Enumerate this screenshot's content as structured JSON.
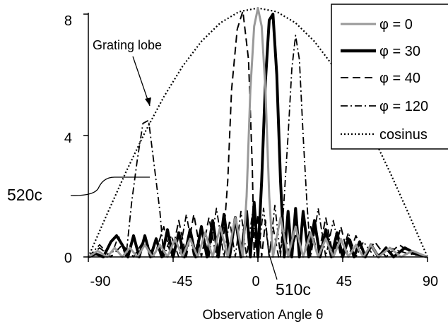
{
  "chart_data": {
    "type": "line",
    "title": "",
    "xlabel": "Observation Angle θ",
    "ylabel": "",
    "xlim": [
      -90,
      90
    ],
    "ylim": [
      0,
      8
    ],
    "x_ticks": [
      "-90",
      "-45",
      "0",
      "45",
      "90"
    ],
    "y_ticks": [
      "0",
      "4",
      "8"
    ],
    "grid": false,
    "legend_position": "top-right",
    "series": [
      {
        "name": "φ = 0",
        "style": "solid-gray",
        "color": "#999999",
        "points": [
          [
            -90,
            0
          ],
          [
            -85,
            0.2
          ],
          [
            -80,
            0
          ],
          [
            -76,
            0.3
          ],
          [
            -72,
            0
          ],
          [
            -68,
            0.3
          ],
          [
            -64,
            0
          ],
          [
            -60,
            0.4
          ],
          [
            -56,
            0
          ],
          [
            -52,
            0.4
          ],
          [
            -48,
            0
          ],
          [
            -44,
            0.6
          ],
          [
            -40,
            0
          ],
          [
            -36,
            0.6
          ],
          [
            -32,
            0
          ],
          [
            -28,
            0.8
          ],
          [
            -24,
            0
          ],
          [
            -20,
            1.0
          ],
          [
            -16,
            0
          ],
          [
            -12,
            1.3
          ],
          [
            -8,
            0
          ],
          [
            -6,
            2.0
          ],
          [
            -4,
            5.5
          ],
          [
            -2,
            7.6
          ],
          [
            0,
            8.2
          ],
          [
            2,
            7.6
          ],
          [
            4,
            5.5
          ],
          [
            6,
            2.0
          ],
          [
            8,
            0
          ],
          [
            12,
            1.3
          ],
          [
            16,
            0
          ],
          [
            20,
            1.0
          ],
          [
            24,
            0
          ],
          [
            28,
            0.8
          ],
          [
            32,
            0
          ],
          [
            36,
            0.6
          ],
          [
            40,
            0
          ],
          [
            44,
            0.6
          ],
          [
            48,
            0
          ],
          [
            52,
            0.4
          ],
          [
            56,
            0
          ],
          [
            60,
            0.4
          ],
          [
            64,
            0
          ],
          [
            70,
            0.3
          ],
          [
            76,
            0
          ],
          [
            82,
            0.2
          ],
          [
            90,
            0
          ]
        ]
      },
      {
        "name": "φ = 30",
        "style": "solid-thick",
        "color": "#000000",
        "points": [
          [
            -90,
            0
          ],
          [
            -86,
            0.1
          ],
          [
            -82,
            0
          ],
          [
            -78,
            0.5
          ],
          [
            -75,
            0.7
          ],
          [
            -72,
            0.4
          ],
          [
            -69,
            0
          ],
          [
            -66,
            0.7
          ],
          [
            -63,
            0
          ],
          [
            -60,
            0.7
          ],
          [
            -57,
            0
          ],
          [
            -54,
            0.6
          ],
          [
            -51,
            0
          ],
          [
            -48,
            0.9
          ],
          [
            -45,
            0
          ],
          [
            -42,
            0.8
          ],
          [
            -39,
            0
          ],
          [
            -36,
            0.9
          ],
          [
            -33,
            0
          ],
          [
            -30,
            1.0
          ],
          [
            -27,
            0
          ],
          [
            -24,
            1.2
          ],
          [
            -21,
            0
          ],
          [
            -18,
            1.4
          ],
          [
            -15,
            0
          ],
          [
            -12,
            1.3
          ],
          [
            -9,
            0
          ],
          [
            -6,
            1.5
          ],
          [
            -4,
            0
          ],
          [
            -2,
            1.8
          ],
          [
            0,
            0
          ],
          [
            2,
            2.5
          ],
          [
            4,
            5.8
          ],
          [
            6,
            7.8
          ],
          [
            8,
            8.0
          ],
          [
            10,
            6.0
          ],
          [
            12,
            2.5
          ],
          [
            14,
            0
          ],
          [
            16,
            1.5
          ],
          [
            18,
            0
          ],
          [
            20,
            1.6
          ],
          [
            22,
            0
          ],
          [
            24,
            1.5
          ],
          [
            27,
            0
          ],
          [
            30,
            1.2
          ],
          [
            33,
            0
          ],
          [
            36,
            0.9
          ],
          [
            39,
            0
          ],
          [
            42,
            0.8
          ],
          [
            45,
            0
          ],
          [
            48,
            0.6
          ],
          [
            51,
            0
          ],
          [
            54,
            0.5
          ],
          [
            57,
            0
          ],
          [
            60,
            0.4
          ],
          [
            64,
            0
          ],
          [
            68,
            0.3
          ],
          [
            72,
            0
          ],
          [
            78,
            0.3
          ],
          [
            84,
            0.1
          ],
          [
            90,
            0
          ]
        ]
      },
      {
        "name": "φ = 40",
        "style": "dashed",
        "color": "#000000",
        "points": [
          [
            -90,
            0
          ],
          [
            -84,
            0.3
          ],
          [
            -78,
            0
          ],
          [
            -72,
            0.4
          ],
          [
            -66,
            0
          ],
          [
            -60,
            0.6
          ],
          [
            -55,
            0
          ],
          [
            -50,
            1.0
          ],
          [
            -46,
            0
          ],
          [
            -42,
            1.2
          ],
          [
            -38,
            0
          ],
          [
            -34,
            1.4
          ],
          [
            -30,
            0
          ],
          [
            -26,
            1.3
          ],
          [
            -22,
            0
          ],
          [
            -18,
            0.8
          ],
          [
            -16,
            2.5
          ],
          [
            -14,
            5.5
          ],
          [
            -11,
            7.5
          ],
          [
            -8,
            8.1
          ],
          [
            -5,
            6.5
          ],
          [
            -3,
            3.0
          ],
          [
            -2,
            0
          ],
          [
            0,
            1.4
          ],
          [
            2,
            0
          ],
          [
            4,
            1.2
          ],
          [
            6,
            0
          ],
          [
            8,
            1.0
          ],
          [
            11,
            0
          ],
          [
            14,
            0.8
          ],
          [
            17,
            0
          ],
          [
            20,
            0.7
          ],
          [
            24,
            0
          ],
          [
            28,
            1.0
          ],
          [
            32,
            0
          ],
          [
            36,
            1.3
          ],
          [
            40,
            0
          ],
          [
            44,
            1.0
          ],
          [
            48,
            0
          ],
          [
            52,
            0.7
          ],
          [
            57,
            0
          ],
          [
            62,
            0.5
          ],
          [
            68,
            0
          ],
          [
            75,
            0.4
          ],
          [
            82,
            0.1
          ],
          [
            90,
            0
          ]
        ]
      },
      {
        "name": "φ = 120",
        "style": "dash-dot",
        "color": "#000000",
        "points": [
          [
            -90,
            0
          ],
          [
            -84,
            0.4
          ],
          [
            -78,
            0
          ],
          [
            -74,
            0.7
          ],
          [
            -70,
            0
          ],
          [
            -67,
            1.8
          ],
          [
            -64,
            3.2
          ],
          [
            -61,
            4.4
          ],
          [
            -58,
            4.5
          ],
          [
            -55,
            3.0
          ],
          [
            -52,
            1.5
          ],
          [
            -50,
            0
          ],
          [
            -46,
            0.7
          ],
          [
            -42,
            0
          ],
          [
            -38,
            1.4
          ],
          [
            -34,
            0
          ],
          [
            -30,
            1.0
          ],
          [
            -26,
            0
          ],
          [
            -22,
            1.6
          ],
          [
            -18,
            0
          ],
          [
            -15,
            1.2
          ],
          [
            -12,
            0
          ],
          [
            -9,
            1.5
          ],
          [
            -6,
            0
          ],
          [
            -3,
            1.4
          ],
          [
            0,
            0
          ],
          [
            3,
            1.6
          ],
          [
            6,
            0
          ],
          [
            9,
            1.7
          ],
          [
            12,
            0
          ],
          [
            14,
            2.0
          ],
          [
            16,
            4.0
          ],
          [
            18,
            6.2
          ],
          [
            20,
            7.3
          ],
          [
            22,
            6.5
          ],
          [
            24,
            4.0
          ],
          [
            26,
            1.8
          ],
          [
            28,
            0
          ],
          [
            32,
            1.6
          ],
          [
            36,
            0
          ],
          [
            40,
            1.2
          ],
          [
            44,
            0
          ],
          [
            48,
            0.8
          ],
          [
            52,
            0
          ],
          [
            56,
            0.5
          ],
          [
            62,
            0
          ],
          [
            70,
            0.3
          ],
          [
            80,
            0.1
          ],
          [
            90,
            0
          ]
        ]
      },
      {
        "name": "cosinus",
        "style": "dotted",
        "color": "#000000",
        "points": [
          [
            -90,
            0
          ],
          [
            -80,
            1.42
          ],
          [
            -70,
            2.8
          ],
          [
            -60,
            4.1
          ],
          [
            -50,
            5.27
          ],
          [
            -40,
            6.28
          ],
          [
            -30,
            7.1
          ],
          [
            -20,
            7.71
          ],
          [
            -10,
            8.08
          ],
          [
            0,
            8.2
          ],
          [
            10,
            8.08
          ],
          [
            20,
            7.71
          ],
          [
            30,
            7.1
          ],
          [
            40,
            6.28
          ],
          [
            50,
            5.27
          ],
          [
            60,
            4.1
          ],
          [
            70,
            2.8
          ],
          [
            80,
            1.42
          ],
          [
            90,
            0
          ]
        ]
      }
    ],
    "annotations": [
      {
        "text": "Grating lobe",
        "points_to": [
          -59,
          4.5
        ]
      },
      {
        "text": "520c",
        "points_to": [
          -65,
          2.7
        ]
      },
      {
        "text": "510c",
        "points_to": [
          10,
          0
        ]
      }
    ]
  }
}
